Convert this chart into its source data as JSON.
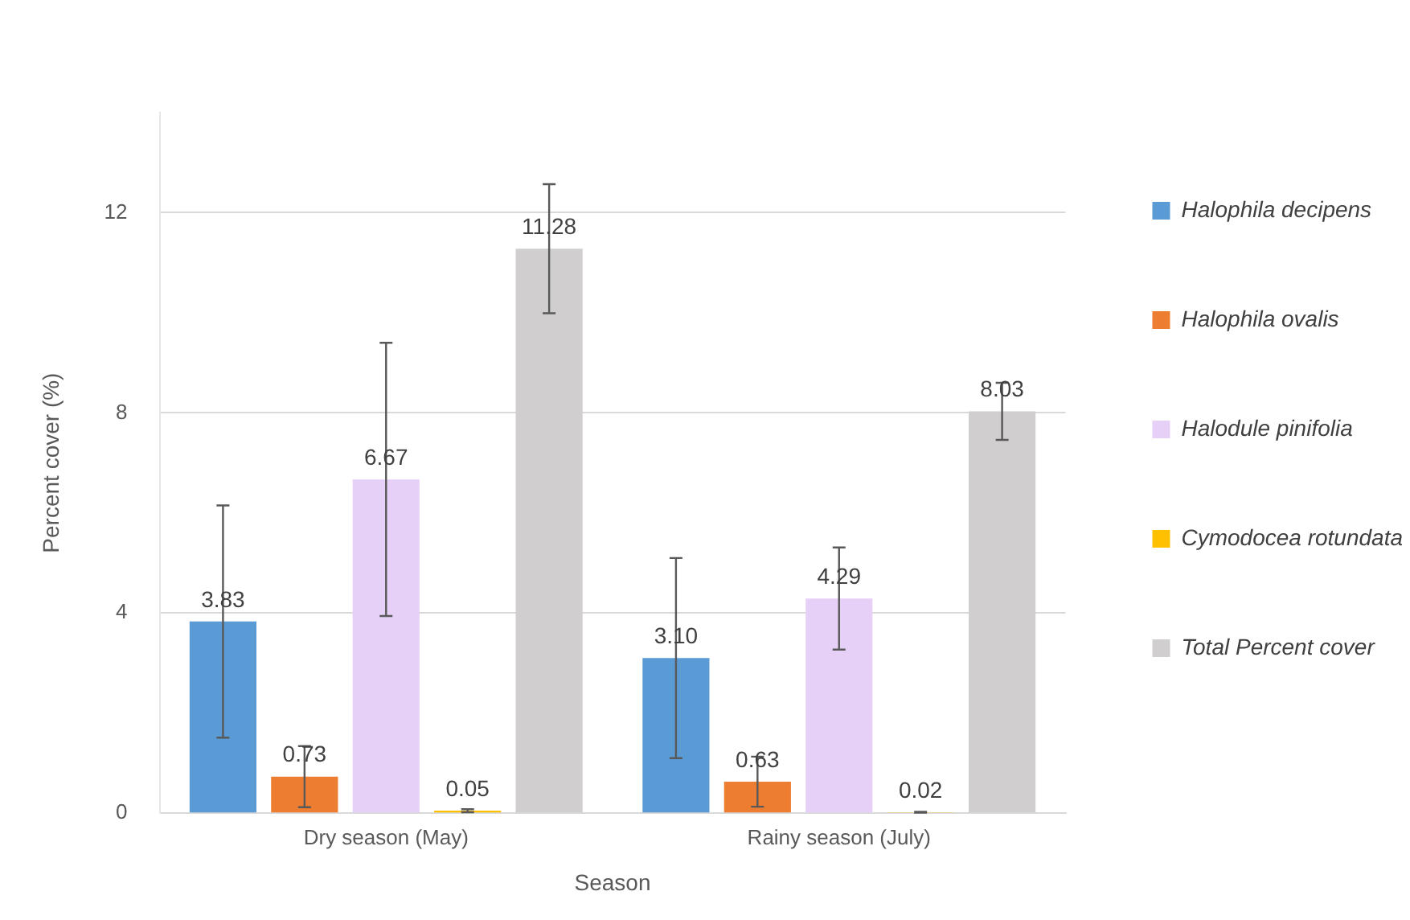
{
  "chart_data": {
    "type": "bar",
    "xlabel": "Season",
    "ylabel": "Percent cover (%)",
    "categories": [
      "Dry season (May)",
      "Rainy season (July)"
    ],
    "series": [
      {
        "name": "Halophila decipens",
        "color": "#5b9bd5",
        "values": [
          3.83,
          3.1
        ],
        "value_labels": [
          "3.83",
          "3.10"
        ],
        "errors": [
          2.32,
          2.0
        ]
      },
      {
        "name": "Halophila ovalis",
        "color": "#ed7d31",
        "values": [
          0.73,
          0.63
        ],
        "errors": [
          0.61,
          0.5
        ]
      },
      {
        "name": "Halodule pinifolia",
        "color": "#e6d0f7",
        "values": [
          6.67,
          4.29
        ],
        "errors": [
          2.73,
          1.02
        ]
      },
      {
        "name": "Cymodocea rotundata",
        "color": "#ffc000",
        "values": [
          0.05,
          0.02
        ],
        "errors": [
          0.03,
          0.01
        ]
      },
      {
        "name": "Total Percent cover",
        "color": "#d0cece",
        "values": [
          11.28,
          8.03
        ],
        "errors": [
          1.29,
          0.57
        ]
      }
    ],
    "ylim": [
      0,
      14
    ],
    "yticks": [
      0,
      4,
      8,
      12
    ],
    "grid": "y",
    "legend": "right",
    "data_labels": true
  }
}
